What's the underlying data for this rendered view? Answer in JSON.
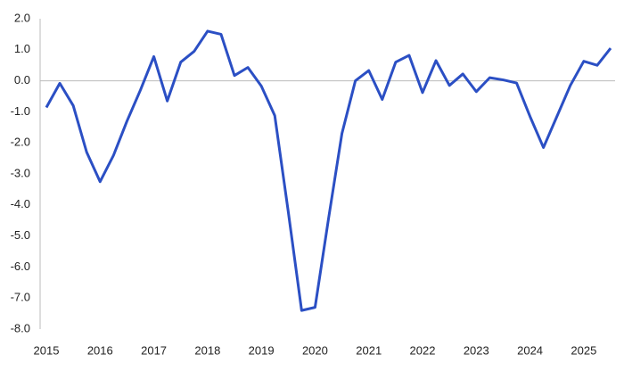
{
  "chart_data": {
    "type": "line",
    "x": [
      2015,
      2015.25,
      2015.5,
      2015.75,
      2016,
      2016.25,
      2016.5,
      2016.75,
      2017,
      2017.25,
      2017.5,
      2017.75,
      2018,
      2018.25,
      2018.5,
      2018.75,
      2019,
      2019.25,
      2019.5,
      2019.75,
      2020,
      2020.25,
      2020.5,
      2020.75,
      2021,
      2021.25,
      2021.5,
      2021.75,
      2022,
      2022.25,
      2022.5,
      2022.75,
      2023,
      2023.25,
      2023.5,
      2023.75,
      2024,
      2024.25,
      2024.5,
      2024.75,
      2025,
      2025.25,
      2025.5
    ],
    "series": [
      {
        "color": "#2b4fc4",
        "values": [
          -0.86,
          -0.08,
          -0.8,
          -2.3,
          -3.25,
          -2.4,
          -1.3,
          -0.3,
          0.78,
          -0.65,
          0.6,
          0.95,
          1.6,
          1.5,
          0.17,
          0.43,
          -0.17,
          -1.12,
          -4.2,
          -7.4,
          -7.3,
          -4.45,
          -1.7,
          0.0,
          0.33,
          -0.6,
          0.6,
          0.82,
          -0.38,
          0.65,
          -0.15,
          0.22,
          -0.35,
          0.1,
          0.03,
          -0.07,
          -1.15,
          -2.15,
          -1.15,
          -0.15,
          0.63,
          0.5,
          1.05
        ]
      }
    ],
    "xlim": [
      2015,
      2025.5
    ],
    "xticks": [
      2015,
      2016,
      2017,
      2018,
      2019,
      2020,
      2021,
      2022,
      2023,
      2024,
      2025
    ],
    "ylim": [
      -8,
      2
    ],
    "yticks": [
      {
        "value": 2,
        "label": "2.0"
      },
      {
        "value": 1,
        "label": "1.0"
      },
      {
        "value": 0,
        "label": "0.0"
      },
      {
        "value": -1,
        "label": "-1.0"
      },
      {
        "value": -2,
        "label": "-2.0"
      },
      {
        "value": -3,
        "label": "-3.0"
      },
      {
        "value": -4,
        "label": "-4.0"
      },
      {
        "value": -5,
        "label": "-5.0"
      },
      {
        "value": -6,
        "label": "-6.0"
      },
      {
        "value": -7,
        "label": "-7.0"
      },
      {
        "value": -8,
        "label": "-8.0"
      }
    ],
    "grid": false
  }
}
